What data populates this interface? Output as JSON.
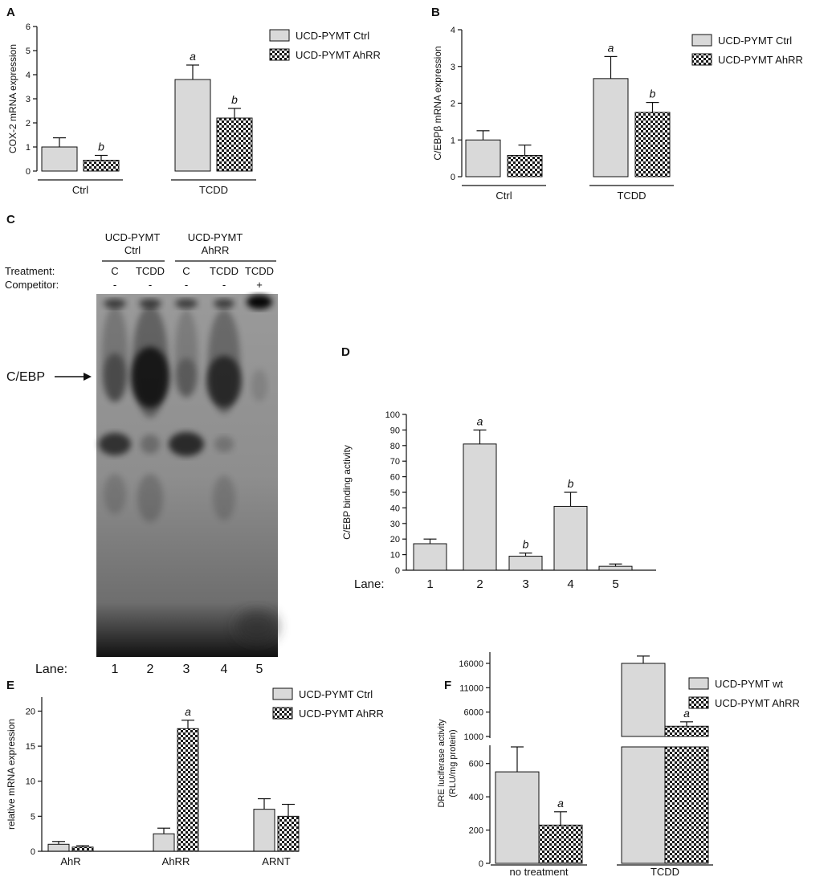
{
  "colors": {
    "ctrl_fill": "#d9d9d9",
    "axis": "#111111",
    "gel_bg": "#8a8a8a"
  },
  "chart_data": [
    {
      "panel": "A",
      "type": "bar",
      "ylabel": "COX-2 mRNA expression",
      "ylim": [
        0,
        6
      ],
      "yticks": [
        0,
        1,
        2,
        3,
        4,
        5,
        6
      ],
      "groups": [
        "Ctrl",
        "TCDD"
      ],
      "series": [
        {
          "name": "UCD-PYMT Ctrl",
          "pattern": "solid",
          "values": [
            1.0,
            3.8
          ],
          "errors": [
            0.38,
            0.6
          ],
          "sig": [
            "",
            "a"
          ]
        },
        {
          "name": "UCD-PYMT AhRR",
          "pattern": "checker",
          "values": [
            0.45,
            2.2
          ],
          "errors": [
            0.2,
            0.4
          ],
          "sig": [
            "b",
            "b"
          ]
        }
      ],
      "legend": "top-right"
    },
    {
      "panel": "B",
      "type": "bar",
      "ylabel": "C/EBPβ mRNA expression",
      "ylim": [
        0,
        4
      ],
      "yticks": [
        0,
        1,
        2,
        3,
        4
      ],
      "groups": [
        "Ctrl",
        "TCDD"
      ],
      "series": [
        {
          "name": "UCD-PYMT Ctrl",
          "pattern": "solid",
          "values": [
            1.0,
            2.67
          ],
          "errors": [
            0.25,
            0.6
          ],
          "sig": [
            "",
            "a"
          ]
        },
        {
          "name": "UCD-PYMT AhRR",
          "pattern": "checker",
          "values": [
            0.58,
            1.75
          ],
          "errors": [
            0.28,
            0.27
          ],
          "sig": [
            "",
            "b"
          ]
        }
      ],
      "legend": "top-right"
    },
    {
      "panel": "D",
      "type": "bar",
      "ylabel": "C/EBP binding activity",
      "ylim": [
        0,
        100
      ],
      "yticks": [
        0,
        10,
        20,
        30,
        40,
        50,
        60,
        70,
        80,
        90,
        100
      ],
      "xprefix": "Lane:",
      "categories": [
        "1",
        "2",
        "3",
        "4",
        "5"
      ],
      "values": [
        17,
        81,
        9,
        41,
        2.5
      ],
      "errors": [
        3,
        9,
        2,
        9,
        1.5
      ],
      "sig": [
        "",
        "a",
        "b",
        "b",
        ""
      ]
    },
    {
      "panel": "E",
      "type": "bar",
      "ylabel": "relative mRNA expression",
      "ylim": [
        0,
        22
      ],
      "yticks": [
        0,
        5,
        10,
        15,
        20
      ],
      "groups": [
        "AhR",
        "AhRR",
        "ARNT"
      ],
      "series": [
        {
          "name": "UCD-PYMT Ctrl",
          "pattern": "solid",
          "values": [
            1.0,
            2.5,
            6.0
          ],
          "errors": [
            0.4,
            0.8,
            1.5
          ],
          "sig": [
            "",
            "",
            ""
          ]
        },
        {
          "name": "UCD-PYMT AhRR",
          "pattern": "checker",
          "values": [
            0.6,
            17.5,
            5.0
          ],
          "errors": [
            0.2,
            1.2,
            1.7
          ],
          "sig": [
            "",
            "a",
            ""
          ]
        }
      ],
      "legend": "top-right"
    },
    {
      "panel": "F",
      "type": "bar",
      "ylabel": "DRE luciferase activity",
      "ylabel2": "(RLU/mg protein)",
      "broken_axis": true,
      "lower_ylim": [
        0,
        700
      ],
      "lower_yticks": [
        0,
        200,
        400,
        600
      ],
      "upper_ylim": [
        1000,
        16000
      ],
      "upper_yticks": [
        1000,
        6000,
        11000,
        16000
      ],
      "groups": [
        "no treatment",
        "TCDD"
      ],
      "series": [
        {
          "name": "UCD-PYMT wt",
          "pattern": "solid",
          "values": [
            550,
            16000
          ],
          "errors": [
            150,
            1500
          ],
          "sig": [
            "",
            ""
          ]
        },
        {
          "name": "UCD-PYMT AhRR",
          "pattern": "checker",
          "values": [
            230,
            3100
          ],
          "errors": [
            80,
            900
          ],
          "sig": [
            "a",
            "a"
          ]
        }
      ],
      "legend": "top-right"
    }
  ],
  "gel": {
    "panel": "C",
    "group1": "UCD-PYMT",
    "group1_sub": "Ctrl",
    "group2": "UCD-PYMT",
    "group2_sub": "AhRR",
    "treatment_label": "Treatment:",
    "competitor_label": "Competitor:",
    "treatments": [
      "C",
      "TCDD",
      "C",
      "TCDD",
      "TCDD"
    ],
    "competitors": [
      "-",
      "-",
      "-",
      "-",
      "+"
    ],
    "band_label": "C/EBP",
    "lane_label": "Lane:",
    "lanes": [
      "1",
      "2",
      "3",
      "4",
      "5"
    ]
  }
}
